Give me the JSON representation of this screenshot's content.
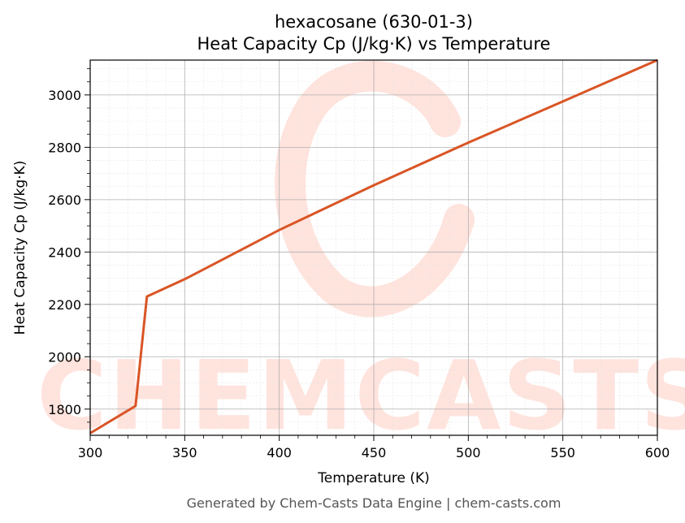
{
  "chart_data": {
    "type": "line",
    "title": "hexacosane (630-01-3)",
    "subtitle": "Heat Capacity Cp (J/kg·K) vs Temperature",
    "xlabel": "Temperature (K)",
    "ylabel": "Heat Capacity Cp (J/kg·K)",
    "xlim": [
      300,
      600
    ],
    "ylim": [
      1700,
      3133
    ],
    "x_ticks": [
      "300",
      "350",
      "400",
      "450",
      "500",
      "550",
      "600"
    ],
    "y_ticks": [
      "1800",
      "2000",
      "2200",
      "2400",
      "2600",
      "2800",
      "3000"
    ],
    "grid": true,
    "series": [
      {
        "color": "#d95525",
        "x": [
          300,
          324,
          330,
          350,
          400,
          450,
          500,
          550,
          600
        ],
        "y": [
          1708,
          1812,
          2230,
          2296,
          2484,
          2655,
          2818,
          2975,
          3133
        ]
      }
    ]
  },
  "watermark": {
    "text": "CHEMCASTS",
    "color": "#ffe3dd"
  },
  "footer": "Generated by Chem-Casts Data Engine | chem-casts.com"
}
